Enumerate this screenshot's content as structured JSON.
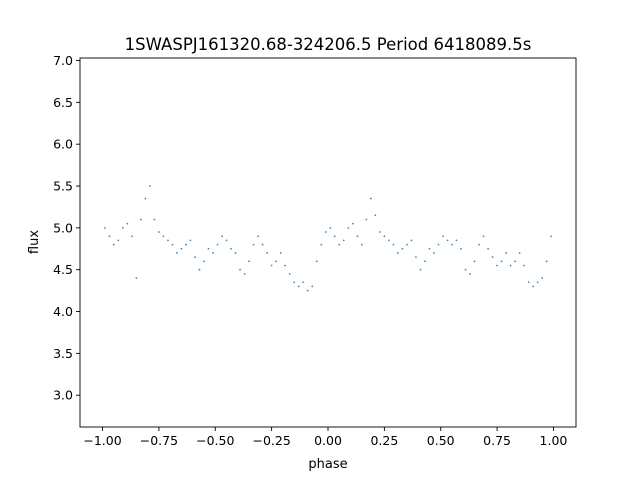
{
  "chart_data": {
    "type": "scatter",
    "title": "1SWASPJ161320.68-324206.5 Period 6418089.5s",
    "xlabel": "phase",
    "ylabel": "flux",
    "xlim": [
      -1.1,
      1.1
    ],
    "ylim": [
      2.62,
      7.03
    ],
    "x_ticks": [
      -1.0,
      -0.75,
      -0.5,
      -0.25,
      0.0,
      0.25,
      0.5,
      0.75,
      1.0
    ],
    "x_tick_labels": [
      "−1.00",
      "−0.75",
      "−0.50",
      "−0.25",
      "0.00",
      "0.25",
      "0.50",
      "0.75",
      "1.00"
    ],
    "y_ticks": [
      3.0,
      3.5,
      4.0,
      4.5,
      5.0,
      5.5,
      6.0,
      6.5,
      7.0
    ],
    "y_tick_labels": [
      "3.0",
      "3.5",
      "4.0",
      "4.5",
      "5.0",
      "5.5",
      "6.0",
      "6.5",
      "7.0"
    ],
    "grid": false,
    "legend": "none",
    "marker_color": "#1f77b4",
    "series": [
      {
        "points": [
          [
            -0.99,
            5.0
          ],
          [
            -0.97,
            4.9
          ],
          [
            -0.95,
            4.8
          ],
          [
            -0.93,
            4.85
          ],
          [
            -0.91,
            5.0
          ],
          [
            -0.89,
            5.05
          ],
          [
            -0.87,
            4.9
          ],
          [
            -0.85,
            4.4
          ],
          [
            -0.83,
            5.1
          ],
          [
            -0.81,
            5.35
          ],
          [
            -0.79,
            5.5
          ],
          [
            -0.77,
            5.1
          ],
          [
            -0.75,
            4.95
          ],
          [
            -0.73,
            4.9
          ],
          [
            -0.71,
            4.85
          ],
          [
            -0.69,
            4.8
          ],
          [
            -0.67,
            4.7
          ],
          [
            -0.65,
            4.75
          ],
          [
            -0.63,
            4.8
          ],
          [
            -0.61,
            4.85
          ],
          [
            -0.59,
            4.65
          ],
          [
            -0.57,
            4.5
          ],
          [
            -0.55,
            4.6
          ],
          [
            -0.53,
            4.75
          ],
          [
            -0.51,
            4.7
          ],
          [
            -0.49,
            4.8
          ],
          [
            -0.47,
            4.9
          ],
          [
            -0.45,
            4.85
          ],
          [
            -0.43,
            4.75
          ],
          [
            -0.41,
            4.7
          ],
          [
            -0.39,
            4.5
          ],
          [
            -0.37,
            4.45
          ],
          [
            -0.35,
            4.6
          ],
          [
            -0.33,
            4.8
          ],
          [
            -0.31,
            4.9
          ],
          [
            -0.29,
            4.8
          ],
          [
            -0.27,
            4.7
          ],
          [
            -0.25,
            4.55
          ],
          [
            -0.23,
            4.6
          ],
          [
            -0.21,
            4.7
          ],
          [
            -0.19,
            4.55
          ],
          [
            -0.17,
            4.45
          ],
          [
            -0.15,
            4.35
          ],
          [
            -0.13,
            4.3
          ],
          [
            -0.11,
            4.35
          ],
          [
            -0.09,
            4.25
          ],
          [
            -0.07,
            4.3
          ],
          [
            -0.05,
            4.6
          ],
          [
            -0.03,
            4.8
          ],
          [
            -0.01,
            4.95
          ],
          [
            0.01,
            5.0
          ],
          [
            0.03,
            4.9
          ],
          [
            0.05,
            4.8
          ],
          [
            0.07,
            4.85
          ],
          [
            0.09,
            5.0
          ],
          [
            0.11,
            5.05
          ],
          [
            0.13,
            4.9
          ],
          [
            0.15,
            4.8
          ],
          [
            0.17,
            5.1
          ],
          [
            0.19,
            5.35
          ],
          [
            0.21,
            5.15
          ],
          [
            0.23,
            4.95
          ],
          [
            0.25,
            4.9
          ],
          [
            0.27,
            4.85
          ],
          [
            0.29,
            4.8
          ],
          [
            0.31,
            4.7
          ],
          [
            0.33,
            4.75
          ],
          [
            0.35,
            4.8
          ],
          [
            0.37,
            4.85
          ],
          [
            0.39,
            4.65
          ],
          [
            0.41,
            4.5
          ],
          [
            0.43,
            4.6
          ],
          [
            0.45,
            4.75
          ],
          [
            0.47,
            4.7
          ],
          [
            0.49,
            4.8
          ],
          [
            0.51,
            4.9
          ],
          [
            0.53,
            4.85
          ],
          [
            0.55,
            4.8
          ],
          [
            0.57,
            4.85
          ],
          [
            0.59,
            4.75
          ],
          [
            0.61,
            4.5
          ],
          [
            0.63,
            4.45
          ],
          [
            0.65,
            4.6
          ],
          [
            0.67,
            4.8
          ],
          [
            0.69,
            4.9
          ],
          [
            0.71,
            4.75
          ],
          [
            0.73,
            4.65
          ],
          [
            0.75,
            4.55
          ],
          [
            0.77,
            4.6
          ],
          [
            0.79,
            4.7
          ],
          [
            0.81,
            4.55
          ],
          [
            0.83,
            4.6
          ],
          [
            0.85,
            4.7
          ],
          [
            0.87,
            4.55
          ],
          [
            0.89,
            4.35
          ],
          [
            0.91,
            4.3
          ],
          [
            0.93,
            4.35
          ],
          [
            0.95,
            4.4
          ],
          [
            0.97,
            4.6
          ],
          [
            0.99,
            4.9
          ]
        ]
      }
    ]
  }
}
